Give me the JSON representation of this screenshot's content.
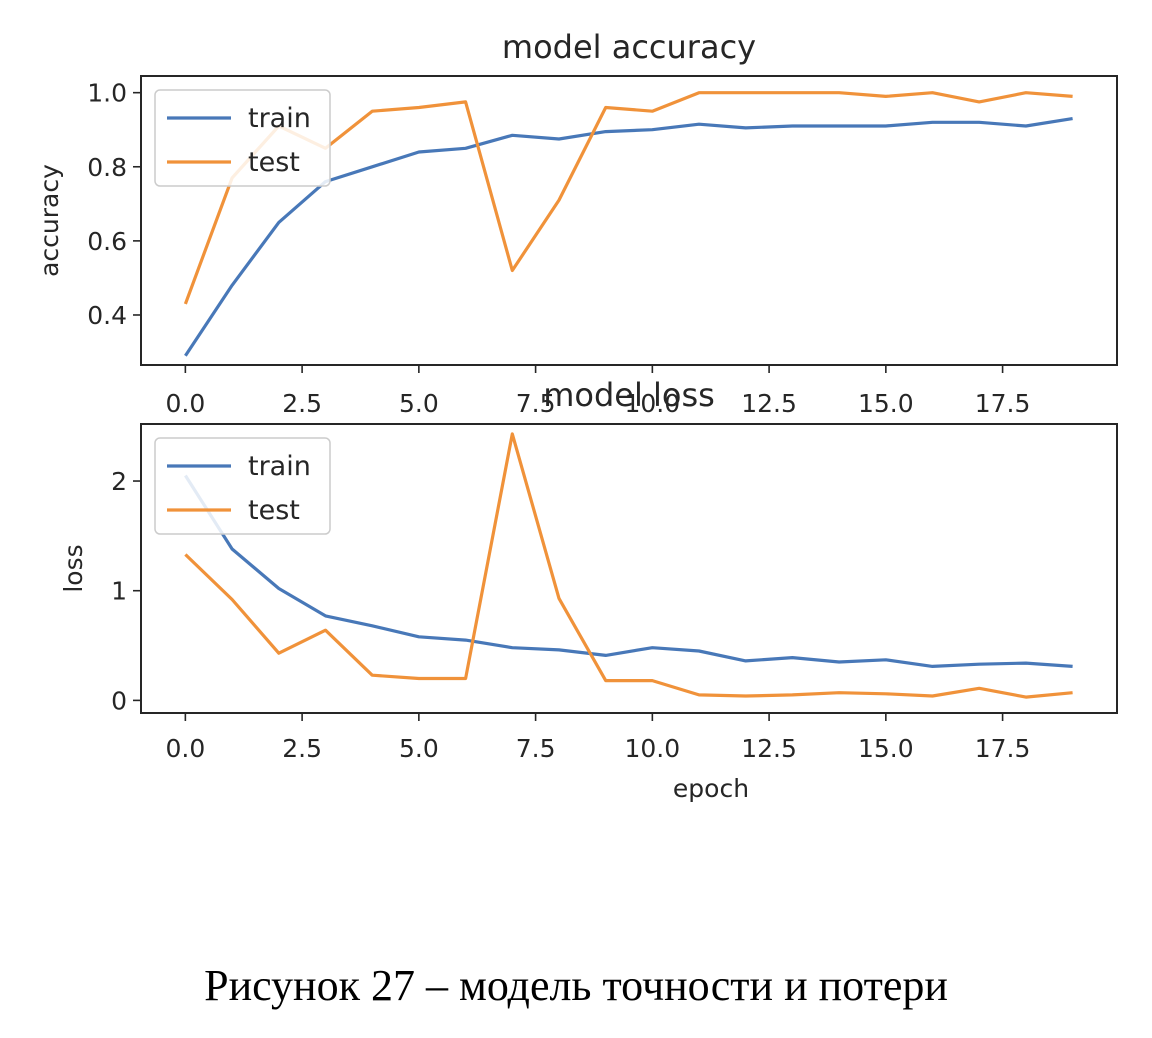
{
  "colors": {
    "train": "#4878b8",
    "test": "#f0923a"
  },
  "caption": "Рисунок 27 – модель точности и потери",
  "chart_data": [
    {
      "type": "line",
      "title": "model accuracy",
      "xlabel": "",
      "ylabel": "accuracy",
      "xlim": [
        -0.95,
        19.95
      ],
      "ylim": [
        0.265,
        1.045
      ],
      "xticks": [
        0,
        2.5,
        5,
        7.5,
        10,
        12.5,
        15,
        17.5
      ],
      "xtick_labels": [
        "0.0",
        "2.5",
        "5.0",
        "7.5",
        "10.0",
        "12.5",
        "15.0",
        "17.5"
      ],
      "yticks": [
        0.4,
        0.6,
        0.8,
        1.0
      ],
      "ytick_labels": [
        "0.4",
        "0.6",
        "0.8",
        "1.0"
      ],
      "legend": "upper left",
      "x": [
        0,
        1,
        2,
        3,
        4,
        5,
        6,
        7,
        8,
        9,
        10,
        11,
        12,
        13,
        14,
        15,
        16,
        17,
        18,
        19
      ],
      "series": [
        {
          "name": "train",
          "key": "train",
          "values": [
            0.29,
            0.48,
            0.65,
            0.76,
            0.8,
            0.84,
            0.85,
            0.885,
            0.875,
            0.895,
            0.9,
            0.915,
            0.905,
            0.91,
            0.91,
            0.91,
            0.92,
            0.92,
            0.91,
            0.93
          ]
        },
        {
          "name": "test",
          "key": "test",
          "values": [
            0.43,
            0.77,
            0.91,
            0.85,
            0.95,
            0.96,
            0.975,
            0.52,
            0.71,
            0.96,
            0.95,
            1.0,
            1.0,
            1.0,
            1.0,
            0.99,
            1.0,
            0.975,
            1.0,
            0.99
          ]
        }
      ]
    },
    {
      "type": "line",
      "title": "model loss",
      "xlabel": "epoch",
      "ylabel": "loss",
      "xlim": [
        -0.95,
        19.95
      ],
      "ylim": [
        -0.115,
        2.52
      ],
      "xticks": [
        0,
        2.5,
        5,
        7.5,
        10,
        12.5,
        15,
        17.5
      ],
      "xtick_labels": [
        "0.0",
        "2.5",
        "5.0",
        "7.5",
        "10.0",
        "12.5",
        "15.0",
        "17.5"
      ],
      "yticks": [
        0,
        1,
        2
      ],
      "ytick_labels": [
        "0",
        "1",
        "2"
      ],
      "legend": "upper left",
      "x": [
        0,
        1,
        2,
        3,
        4,
        5,
        6,
        7,
        8,
        9,
        10,
        11,
        12,
        13,
        14,
        15,
        16,
        17,
        18,
        19
      ],
      "series": [
        {
          "name": "train",
          "key": "train",
          "values": [
            2.05,
            1.38,
            1.02,
            0.77,
            0.68,
            0.58,
            0.55,
            0.48,
            0.46,
            0.41,
            0.48,
            0.45,
            0.36,
            0.39,
            0.35,
            0.37,
            0.31,
            0.33,
            0.34,
            0.31
          ]
        },
        {
          "name": "test",
          "key": "test",
          "values": [
            1.33,
            0.92,
            0.43,
            0.64,
            0.23,
            0.2,
            0.2,
            2.43,
            0.93,
            0.18,
            0.18,
            0.05,
            0.04,
            0.05,
            0.07,
            0.06,
            0.04,
            0.11,
            0.03,
            0.07
          ]
        }
      ]
    }
  ]
}
